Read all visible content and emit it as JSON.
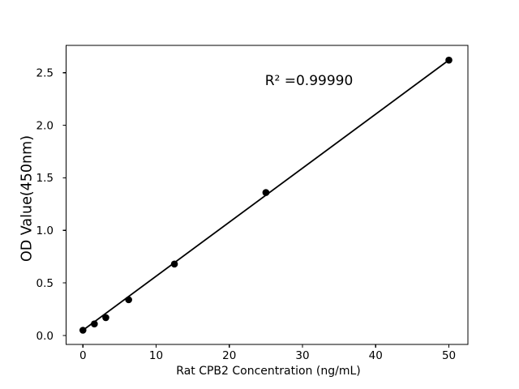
{
  "chart_data": {
    "type": "scatter",
    "title": "",
    "xlabel": "Rat CPB2 Concentration (ng/mL)",
    "ylabel": "OD Value(450nm)",
    "annotation": "R² =0.99990",
    "x": [
      0,
      1.5625,
      3.125,
      6.25,
      12.5,
      25,
      50
    ],
    "y": [
      0.05,
      0.11,
      0.17,
      0.34,
      0.68,
      1.36,
      2.62
    ],
    "fit": {
      "slope": 0.0514,
      "intercept": 0.05,
      "r_squared": 0.9999,
      "x_start": 0,
      "x_end": 50
    },
    "xticks": {
      "values": [
        0,
        10,
        20,
        30,
        40,
        50
      ],
      "labels": [
        "0",
        "10",
        "20",
        "30",
        "40",
        "50"
      ]
    },
    "yticks": {
      "values": [
        0,
        0.5,
        1.0,
        1.5,
        2.0,
        2.5
      ],
      "labels": [
        "0.0",
        "0.5",
        "1.0",
        "1.5",
        "2.0",
        "2.5"
      ]
    },
    "xlim": [
      -2.3,
      52.6
    ],
    "ylim": [
      -0.085,
      2.76
    ],
    "grid": false,
    "legend": null,
    "colors": {
      "marker": "#000000",
      "line": "#000000",
      "axis": "#000000",
      "tick_label": "#000000",
      "background": "#ffffff"
    }
  }
}
